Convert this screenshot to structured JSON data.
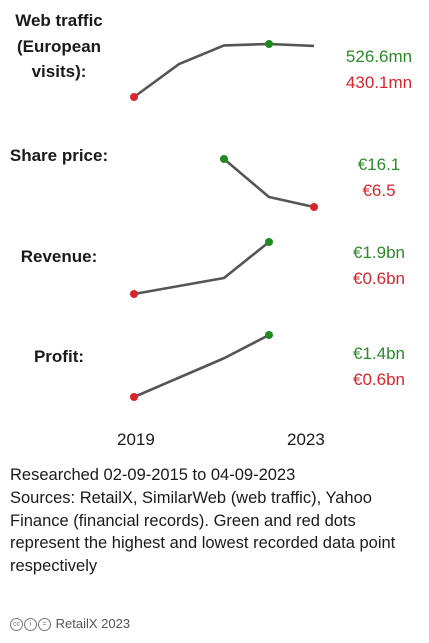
{
  "chart_data": {
    "type": "line",
    "x_start_label": "2019",
    "x_end_label": "2023",
    "metrics": [
      {
        "label": "Web traffic (European visits):",
        "max_display": "526.6mn",
        "min_display": "430.1mn",
        "points": [
          {
            "year": 2019,
            "value": 430.1
          },
          {
            "year": 2020,
            "value": 490
          },
          {
            "year": 2021,
            "value": 524
          },
          {
            "year": 2022,
            "value": 526.6
          },
          {
            "year": 2023,
            "value": 523
          }
        ]
      },
      {
        "label": "Share price:",
        "max_display": "€16.1",
        "min_display": "€6.5",
        "points": [
          {
            "year": 2021,
            "value": 16.1
          },
          {
            "year": 2022,
            "value": 8.5
          },
          {
            "year": 2023,
            "value": 6.5
          }
        ]
      },
      {
        "label": "Revenue:",
        "max_display": "€1.9bn",
        "min_display": "€0.6bn",
        "points": [
          {
            "year": 2019,
            "value": 0.6
          },
          {
            "year": 2020,
            "value": 0.8
          },
          {
            "year": 2021,
            "value": 1.0
          },
          {
            "year": 2022,
            "value": 1.9
          }
        ]
      },
      {
        "label": "Profit:",
        "max_display": "€1.4bn",
        "min_display": "€0.6bn",
        "points": [
          {
            "year": 2019,
            "value": 0.6
          },
          {
            "year": 2020,
            "value": 0.85
          },
          {
            "year": 2021,
            "value": 1.1
          },
          {
            "year": 2022,
            "value": 1.4
          }
        ]
      }
    ]
  },
  "footnote": {
    "line1": "Researched 02-09-2015 to 04-09-2023",
    "line2": "Sources: RetailX, SimilarWeb (web traffic), Yahoo Finance (financial records). Green and red dots represent the highest and lowest recorded data point respectively"
  },
  "credit": "RetailX 2023",
  "colors": {
    "line": "#555555",
    "high": "#1f8a1f",
    "low": "#d9252a"
  }
}
